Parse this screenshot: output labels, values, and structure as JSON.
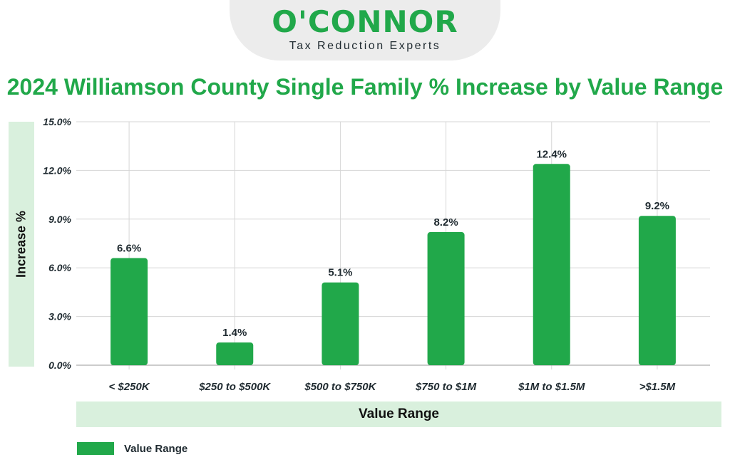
{
  "brand": {
    "wordmark": "O'CONNOR",
    "tagline": "Tax Reduction Experts",
    "color": "#21a84a"
  },
  "legend": {
    "label": "Value Range"
  },
  "chart_data": {
    "type": "bar",
    "title": "2024 Williamson County Single Family % Increase by Value Range",
    "xlabel": "Value Range",
    "ylabel": "Increase %",
    "categories": [
      "< $250K",
      "$250 to $500K",
      "$500 to $750K",
      "$750 to $1M",
      "$1M to $1.5M",
      ">$1.5M"
    ],
    "series": [
      {
        "name": "Value Range",
        "values": [
          6.6,
          1.4,
          5.1,
          8.2,
          12.4,
          9.2
        ],
        "labels": [
          "6.6%",
          "1.4%",
          "5.1%",
          "8.2%",
          "12.4%",
          "9.2%"
        ],
        "color": "#21a84a"
      }
    ],
    "ylim": [
      0,
      15
    ],
    "yticks": [
      0,
      3,
      6,
      9,
      12,
      15
    ],
    "ytick_labels": [
      "0.0%",
      "3.0%",
      "6.0%",
      "9.0%",
      "12.0%",
      "15.0%"
    ],
    "grid": true,
    "legend_position": "bottom-left"
  }
}
